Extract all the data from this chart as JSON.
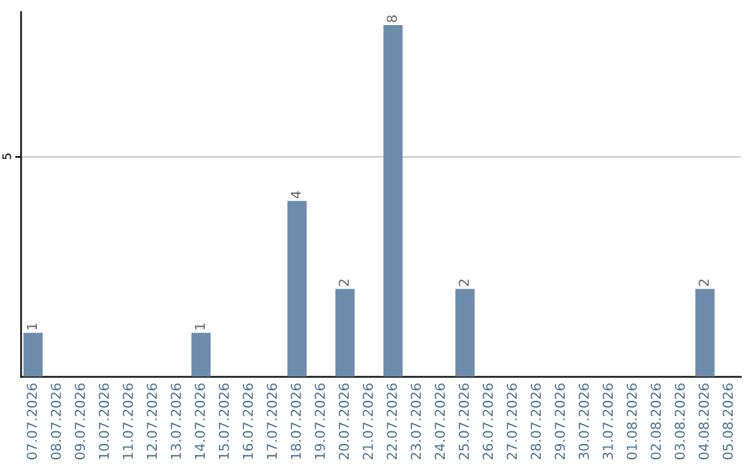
{
  "chart_data": {
    "type": "bar",
    "categories": [
      "07.07.2026",
      "08.07.2026",
      "09.07.2026",
      "10.07.2026",
      "11.07.2026",
      "12.07.2026",
      "13.07.2026",
      "14.07.2026",
      "15.07.2026",
      "16.07.2026",
      "17.07.2026",
      "18.07.2026",
      "19.07.2026",
      "20.07.2026",
      "21.07.2026",
      "22.07.2026",
      "23.07.2026",
      "24.07.2026",
      "25.07.2026",
      "26.07.2026",
      "27.07.2026",
      "28.07.2026",
      "29.07.2026",
      "30.07.2026",
      "31.07.2026",
      "01.08.2026",
      "02.08.2026",
      "03.08.2026",
      "04.08.2026",
      "05.08.2026"
    ],
    "values": [
      1,
      0,
      0,
      0,
      0,
      0,
      0,
      1,
      0,
      0,
      0,
      4,
      0,
      2,
      0,
      8,
      0,
      0,
      2,
      0,
      0,
      0,
      0,
      0,
      0,
      0,
      0,
      0,
      2,
      0
    ],
    "value_labels": [
      "1",
      null,
      null,
      null,
      null,
      null,
      null,
      "1",
      null,
      null,
      null,
      "4",
      null,
      "2",
      null,
      "8",
      null,
      null,
      "2",
      null,
      null,
      null,
      null,
      null,
      null,
      null,
      null,
      null,
      "2",
      null
    ],
    "color": "#6d8cab",
    "ylim": [
      0,
      8.3
    ],
    "yticks": [
      5
    ],
    "grid": "y"
  }
}
